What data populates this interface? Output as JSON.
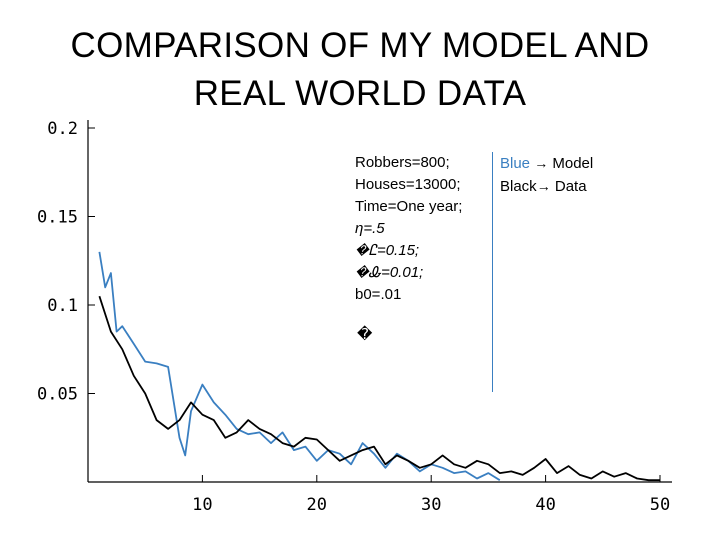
{
  "title": {
    "line1": "COMPARISON OF MY MODEL AND",
    "line2": "REAL WORLD DATA"
  },
  "parameters": [
    "Robbers=800;",
    "Houses=13000;",
    "Time=One year;",
    "η=.5",
    "�Ꮭ=0.15;",
    "�Ꮂ=0.01;",
    "b0=.01"
  ],
  "stray_glyph": "�",
  "legend": {
    "model_word": "Blue",
    "model_text": "Model",
    "data_text": "Black",
    "data_label": "Data",
    "arrow": "→"
  },
  "colors": {
    "model": "#3a7fc1",
    "data": "#000000"
  },
  "chart_data": {
    "type": "line",
    "xlim": [
      0,
      50
    ],
    "ylim": [
      0,
      0.2
    ],
    "x_ticks": [
      "10",
      "20",
      "30",
      "40",
      "50"
    ],
    "y_ticks": [
      "0.05",
      "0.1",
      "0.15",
      "0.2"
    ],
    "x_tick_values": [
      10,
      20,
      30,
      40,
      50
    ],
    "y_tick_values": [
      0.05,
      0.1,
      0.15,
      0.2
    ],
    "grid": false,
    "series": [
      {
        "name": "Model",
        "color": "#3a7fc1",
        "x": [
          1,
          1.5,
          2,
          2.5,
          3,
          4,
          5,
          6,
          7,
          8,
          8.5,
          9,
          10,
          11,
          12,
          13,
          14,
          15,
          16,
          17,
          18,
          19,
          20,
          21,
          22,
          23,
          24,
          25,
          26,
          27,
          28,
          29,
          30,
          31,
          32,
          33,
          34,
          35,
          36
        ],
        "y": [
          0.13,
          0.11,
          0.118,
          0.085,
          0.088,
          0.078,
          0.068,
          0.067,
          0.065,
          0.025,
          0.015,
          0.04,
          0.055,
          0.045,
          0.038,
          0.03,
          0.027,
          0.028,
          0.022,
          0.028,
          0.018,
          0.02,
          0.012,
          0.018,
          0.016,
          0.01,
          0.022,
          0.016,
          0.008,
          0.016,
          0.012,
          0.006,
          0.01,
          0.008,
          0.005,
          0.006,
          0.002,
          0.005,
          0.001
        ]
      },
      {
        "name": "Data",
        "color": "#000000",
        "x": [
          1,
          2,
          3,
          4,
          5,
          6,
          7,
          8,
          9,
          10,
          11,
          12,
          13,
          14,
          15,
          16,
          17,
          18,
          19,
          20,
          21,
          22,
          23,
          24,
          25,
          26,
          27,
          28,
          29,
          30,
          31,
          32,
          33,
          34,
          35,
          36,
          37,
          38,
          39,
          40,
          41,
          42,
          43,
          44,
          45,
          46,
          47,
          48,
          49,
          50
        ],
        "y": [
          0.105,
          0.085,
          0.075,
          0.06,
          0.05,
          0.035,
          0.03,
          0.035,
          0.045,
          0.038,
          0.035,
          0.025,
          0.028,
          0.035,
          0.03,
          0.027,
          0.022,
          0.02,
          0.025,
          0.024,
          0.018,
          0.012,
          0.015,
          0.018,
          0.02,
          0.01,
          0.015,
          0.012,
          0.008,
          0.01,
          0.015,
          0.01,
          0.008,
          0.012,
          0.01,
          0.005,
          0.006,
          0.004,
          0.008,
          0.013,
          0.005,
          0.009,
          0.004,
          0.002,
          0.006,
          0.003,
          0.005,
          0.002,
          0.001,
          0.001
        ]
      }
    ]
  }
}
